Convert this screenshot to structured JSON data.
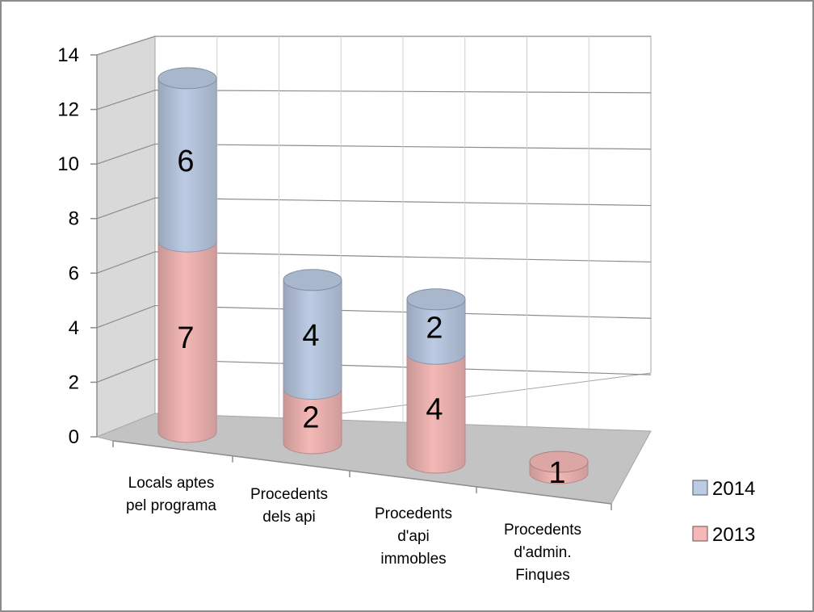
{
  "chart_data": {
    "type": "bar",
    "stacked": true,
    "style": "3d-cylinder",
    "categories": [
      [
        "Locals aptes",
        "pel programa"
      ],
      [
        "Procedents",
        "dels api"
      ],
      [
        "Procedents",
        "d'api",
        "immobles"
      ],
      [
        "Procedents",
        "d'admin.",
        "Finques"
      ]
    ],
    "series": [
      {
        "name": "2013",
        "values": [
          7,
          2,
          4,
          1
        ],
        "color": "#f4b8b6"
      },
      {
        "name": "2014",
        "values": [
          6,
          4,
          2,
          0
        ],
        "color": "#bccbe4"
      }
    ],
    "ylim": [
      0,
      14
    ],
    "yticks": [
      0,
      2,
      4,
      6,
      8,
      10,
      12,
      14
    ],
    "grid": true,
    "legend": "right",
    "legend_order": [
      "2014",
      "2013"
    ],
    "xlabel": "",
    "ylabel": "",
    "title": ""
  }
}
